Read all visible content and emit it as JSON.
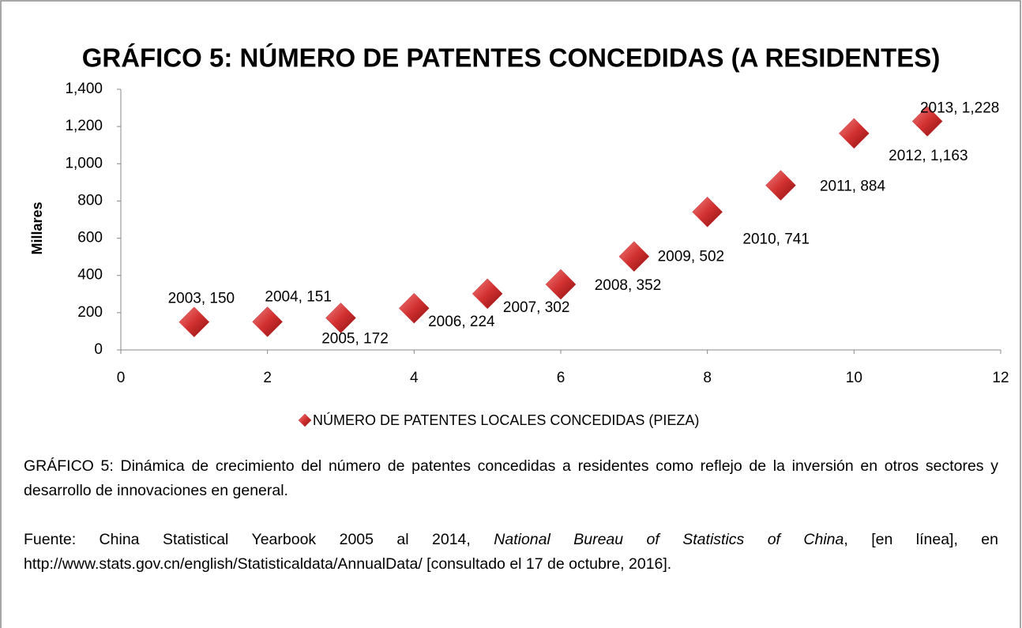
{
  "chart_data": {
    "type": "scatter",
    "title": "GRÁFICO 5: NÚMERO DE PATENTES CONCEDIDAS (A RESIDENTES)",
    "y_label": "Millares",
    "series": [
      {
        "name": "NÚMERO DE PATENTES LOCALES CONCEDIDAS (PIEZA)",
        "color": "#c62a2a",
        "x": [
          1,
          2,
          3,
          4,
          5,
          6,
          7,
          8,
          9,
          10,
          11
        ],
        "values": [
          150,
          151,
          172,
          224,
          302,
          352,
          502,
          741,
          884,
          1163,
          1228
        ],
        "value_labels": [
          "2003, 150",
          "2004, 151",
          "2005, 172",
          "2006, 224",
          "2007, 302",
          "2008, 352",
          "2009, 502",
          "2010, 741",
          "2011, 884",
          "2012, 1,163",
          "2013, 1,228"
        ]
      }
    ],
    "xlim": [
      0,
      12
    ],
    "xticks": [
      0,
      2,
      4,
      6,
      8,
      10,
      12
    ],
    "ylim": [
      0,
      1400
    ],
    "yticks": [
      0,
      200,
      400,
      600,
      800,
      {
        "value": 1000,
        "label": "1,000"
      },
      {
        "value": 1200,
        "label": "1,200"
      },
      {
        "value": 1400,
        "label": "1,400"
      }
    ],
    "grid": false,
    "legend": "bottom"
  },
  "caption": "GRÁFICO 5:  Dinámica de crecimiento del número de patentes concedidas a residentes como reflejo de la inversión en otros sectores y desarrollo  de innovaciones  en general.",
  "source": {
    "prefix": "Fuente: China Statistical Yearbook 2005 al 2014, ",
    "italic": "National Bureau of Statistics of  China",
    "suffix": ",  [en línea],  en http://www.stats.gov.cn/english/Statisticaldata/AnnualData/  [consultado el 17 de octubre, 2016]."
  }
}
